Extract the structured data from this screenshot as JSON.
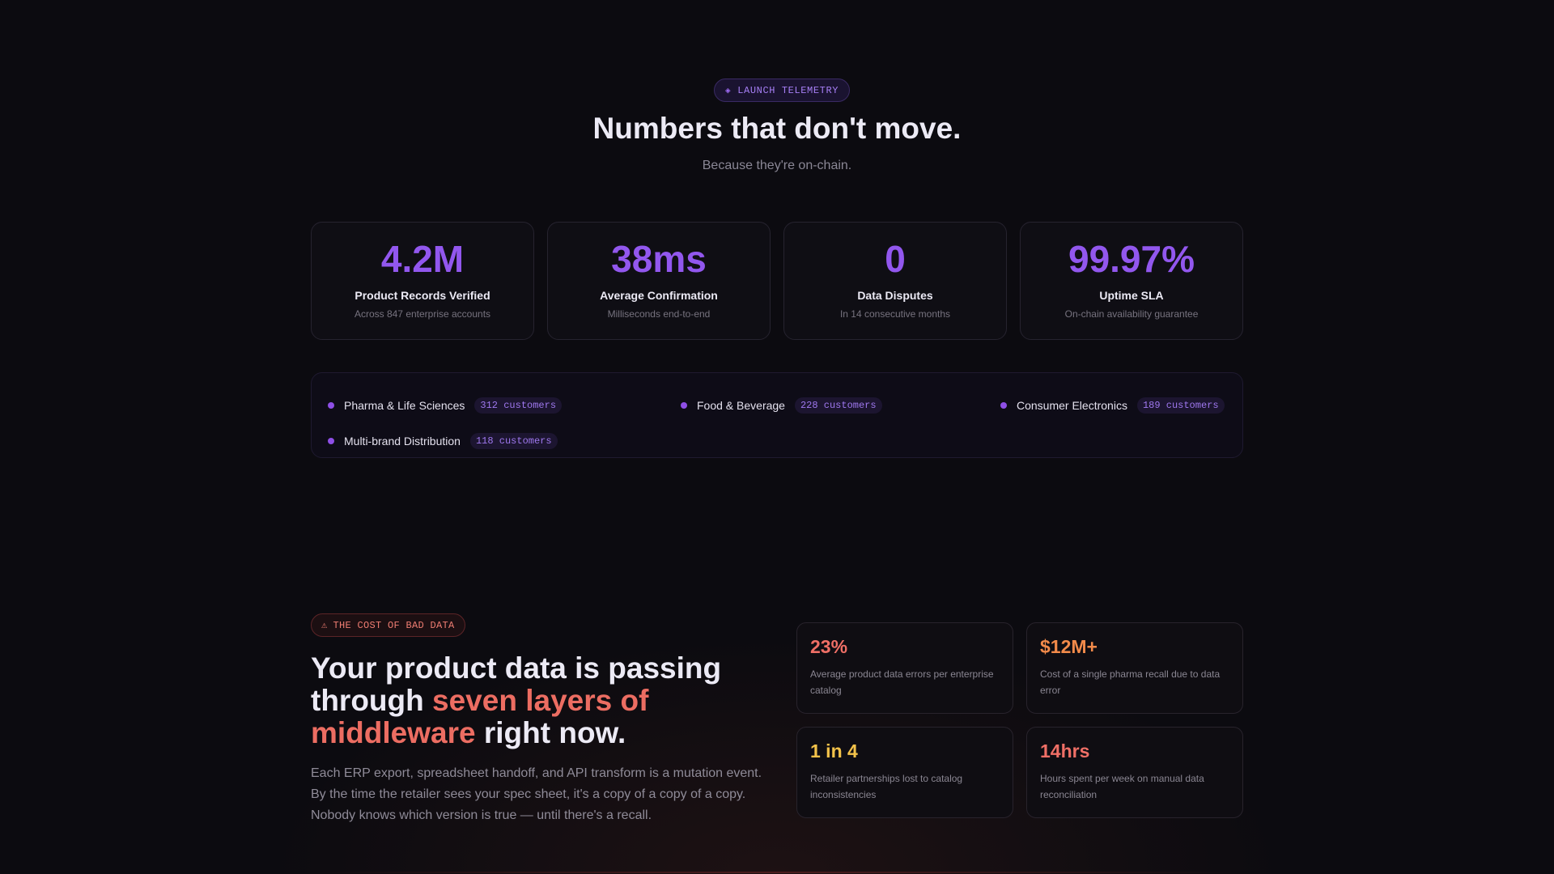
{
  "telemetry": {
    "badge_icon": "diamond-icon",
    "badge_label": "LAUNCH TELEMETRY",
    "title": "Numbers that don't move.",
    "subtitle": "Because they're on-chain."
  },
  "stats": [
    {
      "value": "4.2M",
      "label": "Product Records Verified",
      "desc": "Across 847 enterprise accounts"
    },
    {
      "value": "38ms",
      "label": "Average Confirmation",
      "desc": "Milliseconds end-to-end"
    },
    {
      "value": "0",
      "label": "Data Disputes",
      "desc": "In 14 consecutive months"
    },
    {
      "value": "99.97%",
      "label": "Uptime SLA",
      "desc": "On-chain availability guarantee"
    }
  ],
  "industries": [
    {
      "name": "Pharma & Life Sciences",
      "count": "312 customers"
    },
    {
      "name": "Food & Beverage",
      "count": "228 customers"
    },
    {
      "name": "Consumer Electronics",
      "count": "189 customers"
    },
    {
      "name": "Multi-brand Distribution",
      "count": "118 customers"
    }
  ],
  "cost": {
    "badge_icon": "warning-icon",
    "badge_label": "THE COST OF BAD DATA",
    "title_part1": "Your product data is passing through ",
    "title_accent": "seven layers of middleware",
    "title_part2": " right now.",
    "body": "Each ERP export, spreadsheet handoff, and API transform is a mutation event. By the time the retailer sees your spec sheet, it's a copy of a copy of a copy. Nobody knows which version is true — until there's a recall.",
    "cards": [
      {
        "value": "23%",
        "desc": "Average product data errors per enterprise catalog",
        "color": "#ef6f66"
      },
      {
        "value": "$12M+",
        "desc": "Cost of a single pharma recall due to data error",
        "color": "#f28a4a"
      },
      {
        "value": "1 in 4",
        "desc": "Retailer partnerships lost to catalog inconsistencies",
        "color": "#f3c24a"
      },
      {
        "value": "14hrs",
        "desc": "Hours spent per week on manual data reconciliation",
        "color": "#ef6f66"
      }
    ]
  },
  "colors": {
    "accent_purple": "#9257ee",
    "accent_red": "#ec6d62"
  }
}
